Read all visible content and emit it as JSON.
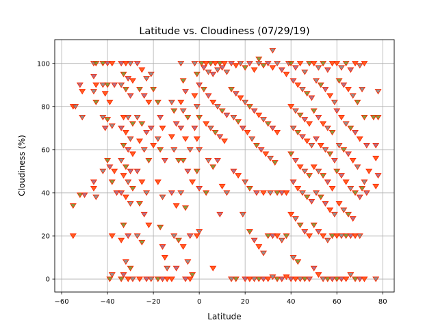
{
  "chart_data": {
    "type": "scatter",
    "title": "Latitude vs. Cloudiness (07/29/19)",
    "xlabel": "Latitude",
    "ylabel": "Cloudiness (%)",
    "xlim": [
      -63,
      85
    ],
    "ylim": [
      -6,
      111
    ],
    "xticks": [
      -60,
      -40,
      -20,
      0,
      20,
      40,
      60,
      80
    ],
    "yticks": [
      0,
      20,
      40,
      60,
      80,
      100
    ],
    "grid": true,
    "marker": "triangle-down",
    "marker_edge_color": "#ff2a00",
    "marker_face_colors": [
      "#ff4500",
      "#7f7f7f",
      "#6b8e23",
      "#a05a7a"
    ],
    "points": [
      [
        -55,
        80
      ],
      [
        -54,
        80
      ],
      [
        -55,
        34
      ],
      [
        -52,
        90
      ],
      [
        -51,
        87
      ],
      [
        -51,
        75
      ],
      [
        -52,
        39
      ],
      [
        -50,
        39
      ],
      [
        -55,
        20
      ],
      [
        -46,
        100
      ],
      [
        -45,
        100
      ],
      [
        -46,
        94
      ],
      [
        -45,
        90
      ],
      [
        -46,
        87
      ],
      [
        -45,
        82
      ],
      [
        -46,
        45
      ],
      [
        -46,
        42
      ],
      [
        -45,
        38
      ],
      [
        -42,
        100
      ],
      [
        -40,
        100
      ],
      [
        -38,
        100
      ],
      [
        -42,
        90
      ],
      [
        -40,
        90
      ],
      [
        -37,
        90
      ],
      [
        -41,
        86
      ],
      [
        -42,
        75
      ],
      [
        -40,
        74
      ],
      [
        -41,
        70
      ],
      [
        -39,
        82
      ],
      [
        -38,
        71
      ],
      [
        -40,
        55
      ],
      [
        -39,
        52
      ],
      [
        -37,
        50
      ],
      [
        -42,
        50
      ],
      [
        -38,
        45
      ],
      [
        -36,
        40
      ],
      [
        -38,
        20
      ],
      [
        -38,
        2
      ],
      [
        -39,
        0
      ],
      [
        -34,
        100
      ],
      [
        -32,
        100
      ],
      [
        -30,
        100
      ],
      [
        -33,
        95
      ],
      [
        -31,
        93
      ],
      [
        -29,
        92
      ],
      [
        -34,
        90
      ],
      [
        -32,
        88
      ],
      [
        -30,
        85
      ],
      [
        -33,
        75
      ],
      [
        -31,
        75
      ],
      [
        -29,
        72
      ],
      [
        -34,
        70
      ],
      [
        -32,
        68
      ],
      [
        -30,
        65
      ],
      [
        -33,
        62
      ],
      [
        -31,
        60
      ],
      [
        -29,
        58
      ],
      [
        -34,
        55
      ],
      [
        -32,
        52
      ],
      [
        -30,
        50
      ],
      [
        -33,
        48
      ],
      [
        -31,
        45
      ],
      [
        -29,
        42
      ],
      [
        -34,
        40
      ],
      [
        -32,
        38
      ],
      [
        -30,
        35
      ],
      [
        -33,
        25
      ],
      [
        -31,
        20
      ],
      [
        -34,
        18
      ],
      [
        -32,
        8
      ],
      [
        -30,
        5
      ],
      [
        -33,
        2
      ],
      [
        -31,
        0
      ],
      [
        -29,
        0
      ],
      [
        -34,
        0
      ],
      [
        -27,
        100
      ],
      [
        -25,
        97
      ],
      [
        -23,
        93
      ],
      [
        -26,
        88
      ],
      [
        -24,
        85
      ],
      [
        -22,
        82
      ],
      [
        -27,
        75
      ],
      [
        -25,
        72
      ],
      [
        -23,
        68
      ],
      [
        -26,
        64
      ],
      [
        -24,
        60
      ],
      [
        -22,
        55
      ],
      [
        -27,
        50
      ],
      [
        -25,
        45
      ],
      [
        -23,
        40
      ],
      [
        -26,
        35
      ],
      [
        -24,
        30
      ],
      [
        -22,
        25
      ],
      [
        -27,
        20
      ],
      [
        -25,
        17
      ],
      [
        -23,
        0
      ],
      [
        -26,
        0
      ],
      [
        -21,
        95
      ],
      [
        -20,
        88
      ],
      [
        -21,
        70
      ],
      [
        -20,
        62
      ],
      [
        -21,
        0
      ],
      [
        -18,
        82
      ],
      [
        -17,
        75
      ],
      [
        -16,
        70
      ],
      [
        -18,
        65
      ],
      [
        -17,
        60
      ],
      [
        -15,
        55
      ],
      [
        -18,
        45
      ],
      [
        -16,
        38
      ],
      [
        -17,
        24
      ],
      [
        -16,
        15
      ],
      [
        -15,
        10
      ],
      [
        -14,
        5
      ],
      [
        -18,
        0
      ],
      [
        -16,
        0
      ],
      [
        -14,
        0
      ],
      [
        -12,
        82
      ],
      [
        -11,
        78
      ],
      [
        -10,
        72
      ],
      [
        -12,
        66
      ],
      [
        -11,
        60
      ],
      [
        -9,
        55
      ],
      [
        -12,
        40
      ],
      [
        -10,
        34
      ],
      [
        -11,
        20
      ],
      [
        -9,
        18
      ],
      [
        -10,
        5
      ],
      [
        -12,
        0
      ],
      [
        -8,
        100
      ],
      [
        -7,
        92
      ],
      [
        -6,
        87
      ],
      [
        -8,
        82
      ],
      [
        -7,
        78
      ],
      [
        -5,
        75
      ],
      [
        -8,
        70
      ],
      [
        -6,
        65
      ],
      [
        -4,
        60
      ],
      [
        -7,
        55
      ],
      [
        -5,
        50
      ],
      [
        -3,
        45
      ],
      [
        -8,
        40
      ],
      [
        -6,
        33
      ],
      [
        -4,
        20
      ],
      [
        -7,
        15
      ],
      [
        -5,
        8
      ],
      [
        -3,
        2
      ],
      [
        -6,
        0
      ],
      [
        -4,
        0
      ],
      [
        -2,
        100
      ],
      [
        -1,
        95
      ],
      [
        0,
        90
      ],
      [
        -2,
        85
      ],
      [
        -1,
        80
      ],
      [
        0,
        75
      ],
      [
        -2,
        70
      ],
      [
        -1,
        65
      ],
      [
        0,
        60
      ],
      [
        -1,
        50
      ],
      [
        0,
        42
      ],
      [
        -1,
        20
      ],
      [
        0,
        22
      ],
      [
        1,
        100
      ],
      [
        2,
        98
      ],
      [
        3,
        100
      ],
      [
        4,
        96
      ],
      [
        5,
        100
      ],
      [
        6,
        95
      ],
      [
        7,
        100
      ],
      [
        8,
        97
      ],
      [
        9,
        100
      ],
      [
        10,
        98
      ],
      [
        11,
        100
      ],
      [
        12,
        96
      ],
      [
        2,
        88
      ],
      [
        4,
        85
      ],
      [
        6,
        82
      ],
      [
        8,
        80
      ],
      [
        10,
        78
      ],
      [
        12,
        76
      ],
      [
        3,
        72
      ],
      [
        5,
        70
      ],
      [
        7,
        68
      ],
      [
        9,
        66
      ],
      [
        11,
        64
      ],
      [
        4,
        55
      ],
      [
        6,
        52
      ],
      [
        8,
        55
      ],
      [
        10,
        43
      ],
      [
        12,
        40
      ],
      [
        3,
        40
      ],
      [
        9,
        30
      ],
      [
        6,
        5
      ],
      [
        14,
        0
      ],
      [
        16,
        0
      ],
      [
        14,
        100
      ],
      [
        16,
        99
      ],
      [
        18,
        100
      ],
      [
        20,
        98
      ],
      [
        22,
        100
      ],
      [
        24,
        97
      ],
      [
        26,
        100
      ],
      [
        28,
        99
      ],
      [
        30,
        100
      ],
      [
        32,
        98
      ],
      [
        34,
        100
      ],
      [
        14,
        88
      ],
      [
        16,
        86
      ],
      [
        18,
        84
      ],
      [
        20,
        82
      ],
      [
        22,
        80
      ],
      [
        24,
        78
      ],
      [
        26,
        76
      ],
      [
        28,
        74
      ],
      [
        30,
        72
      ],
      [
        32,
        70
      ],
      [
        34,
        68
      ],
      [
        15,
        75
      ],
      [
        17,
        73
      ],
      [
        19,
        70
      ],
      [
        21,
        68
      ],
      [
        23,
        65
      ],
      [
        25,
        62
      ],
      [
        27,
        60
      ],
      [
        29,
        58
      ],
      [
        31,
        56
      ],
      [
        33,
        54
      ],
      [
        15,
        50
      ],
      [
        17,
        48
      ],
      [
        20,
        45
      ],
      [
        22,
        42
      ],
      [
        25,
        40
      ],
      [
        28,
        40
      ],
      [
        31,
        40
      ],
      [
        34,
        40
      ],
      [
        36,
        40
      ],
      [
        38,
        40
      ],
      [
        19,
        30
      ],
      [
        22,
        22
      ],
      [
        24,
        18
      ],
      [
        26,
        15
      ],
      [
        28,
        12
      ],
      [
        30,
        20
      ],
      [
        32,
        20
      ],
      [
        34,
        20
      ],
      [
        36,
        18
      ],
      [
        38,
        20
      ],
      [
        20,
        0
      ],
      [
        22,
        0
      ],
      [
        24,
        0
      ],
      [
        26,
        0
      ],
      [
        28,
        0
      ],
      [
        30,
        0
      ],
      [
        32,
        1
      ],
      [
        34,
        0
      ],
      [
        36,
        0
      ],
      [
        38,
        1
      ],
      [
        32,
        106
      ],
      [
        26,
        102
      ],
      [
        36,
        97
      ],
      [
        38,
        95
      ],
      [
        39,
        100
      ],
      [
        40,
        100
      ],
      [
        42,
        98
      ],
      [
        44,
        100
      ],
      [
        46,
        96
      ],
      [
        48,
        100
      ],
      [
        41,
        92
      ],
      [
        43,
        90
      ],
      [
        45,
        88
      ],
      [
        47,
        86
      ],
      [
        49,
        84
      ],
      [
        40,
        80
      ],
      [
        42,
        78
      ],
      [
        44,
        76
      ],
      [
        46,
        74
      ],
      [
        48,
        72
      ],
      [
        41,
        70
      ],
      [
        43,
        68
      ],
      [
        45,
        66
      ],
      [
        47,
        64
      ],
      [
        49,
        62
      ],
      [
        40,
        58
      ],
      [
        42,
        55
      ],
      [
        44,
        52
      ],
      [
        46,
        50
      ],
      [
        48,
        48
      ],
      [
        41,
        45
      ],
      [
        43,
        42
      ],
      [
        45,
        40
      ],
      [
        47,
        38
      ],
      [
        49,
        36
      ],
      [
        40,
        30
      ],
      [
        42,
        28
      ],
      [
        44,
        25
      ],
      [
        46,
        22
      ],
      [
        48,
        20
      ],
      [
        41,
        10
      ],
      [
        43,
        8
      ],
      [
        40,
        0
      ],
      [
        42,
        0
      ],
      [
        44,
        0
      ],
      [
        46,
        0
      ],
      [
        48,
        0
      ],
      [
        50,
        100
      ],
      [
        52,
        98
      ],
      [
        54,
        100
      ],
      [
        56,
        97
      ],
      [
        58,
        100
      ],
      [
        51,
        92
      ],
      [
        53,
        90
      ],
      [
        55,
        88
      ],
      [
        57,
        85
      ],
      [
        59,
        82
      ],
      [
        50,
        78
      ],
      [
        52,
        75
      ],
      [
        54,
        72
      ],
      [
        56,
        70
      ],
      [
        58,
        68
      ],
      [
        51,
        65
      ],
      [
        53,
        62
      ],
      [
        55,
        60
      ],
      [
        57,
        58
      ],
      [
        59,
        55
      ],
      [
        50,
        52
      ],
      [
        52,
        50
      ],
      [
        54,
        48
      ],
      [
        56,
        45
      ],
      [
        58,
        42
      ],
      [
        51,
        40
      ],
      [
        53,
        38
      ],
      [
        55,
        35
      ],
      [
        57,
        32
      ],
      [
        59,
        30
      ],
      [
        50,
        25
      ],
      [
        52,
        22
      ],
      [
        54,
        20
      ],
      [
        56,
        18
      ],
      [
        58,
        20
      ],
      [
        50,
        5
      ],
      [
        52,
        2
      ],
      [
        54,
        0
      ],
      [
        56,
        0
      ],
      [
        58,
        0
      ],
      [
        60,
        100
      ],
      [
        62,
        98
      ],
      [
        64,
        100
      ],
      [
        66,
        97
      ],
      [
        68,
        100
      ],
      [
        70,
        99
      ],
      [
        61,
        92
      ],
      [
        63,
        90
      ],
      [
        65,
        88
      ],
      [
        67,
        85
      ],
      [
        69,
        82
      ],
      [
        60,
        78
      ],
      [
        62,
        75
      ],
      [
        64,
        72
      ],
      [
        66,
        70
      ],
      [
        68,
        68
      ],
      [
        70,
        65
      ],
      [
        61,
        62
      ],
      [
        63,
        60
      ],
      [
        65,
        58
      ],
      [
        67,
        55
      ],
      [
        69,
        52
      ],
      [
        60,
        50
      ],
      [
        62,
        48
      ],
      [
        64,
        45
      ],
      [
        66,
        42
      ],
      [
        68,
        40
      ],
      [
        70,
        38
      ],
      [
        61,
        35
      ],
      [
        63,
        32
      ],
      [
        65,
        30
      ],
      [
        67,
        28
      ],
      [
        60,
        20
      ],
      [
        62,
        20
      ],
      [
        64,
        20
      ],
      [
        66,
        20
      ],
      [
        68,
        20
      ],
      [
        70,
        20
      ],
      [
        60,
        0
      ],
      [
        62,
        0
      ],
      [
        64,
        0
      ],
      [
        66,
        2
      ],
      [
        68,
        0
      ],
      [
        70,
        0
      ],
      [
        72,
        100
      ],
      [
        71,
        88
      ],
      [
        72,
        75
      ],
      [
        73,
        62
      ],
      [
        74,
        50
      ],
      [
        72,
        45
      ],
      [
        71,
        42
      ],
      [
        73,
        40
      ],
      [
        72,
        0
      ],
      [
        77,
        0
      ],
      [
        76,
        75
      ],
      [
        77,
        62
      ],
      [
        77,
        56
      ],
      [
        78,
        87
      ],
      [
        78,
        75
      ],
      [
        78,
        48
      ],
      [
        77,
        43
      ]
    ]
  }
}
